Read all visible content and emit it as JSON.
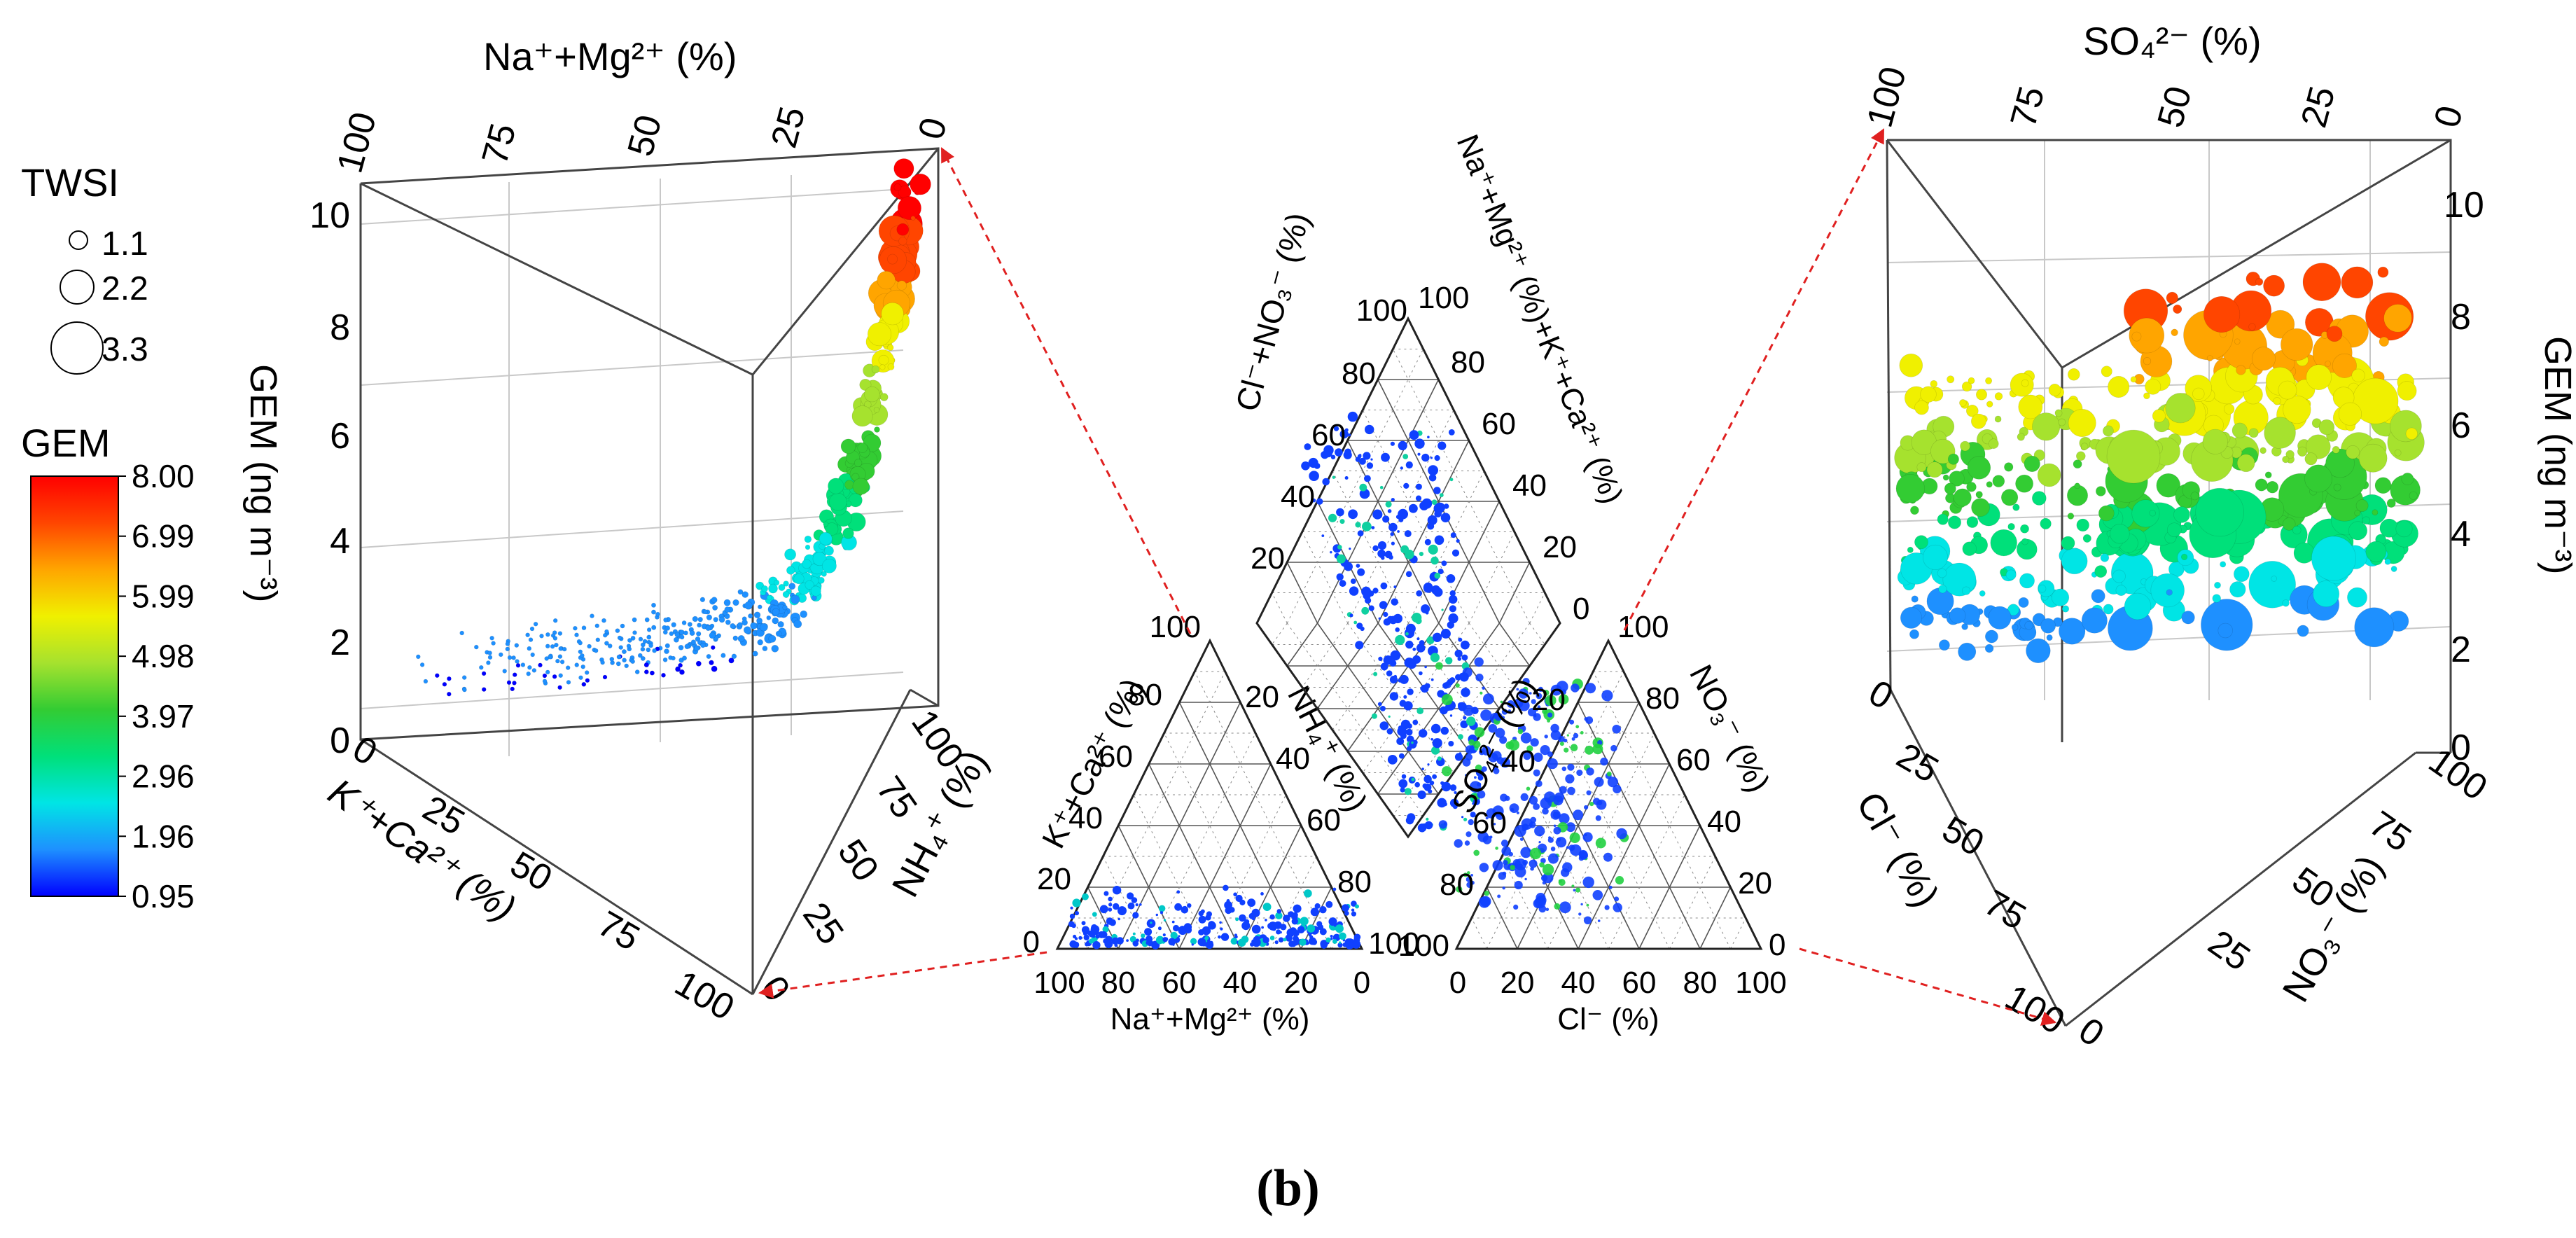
{
  "caption": "(b)",
  "colors": {
    "arrow": "#e02020",
    "axis": "#333333",
    "grid": "#bfbfbf",
    "gradient": [
      "#0000ff",
      "#1e90ff",
      "#00e5e5",
      "#00e07a",
      "#33cc33",
      "#a6e22e",
      "#f0f000",
      "#ffa500",
      "#ff4500",
      "#ff0000"
    ]
  },
  "legend": {
    "twsi_title": "TWSI",
    "twsi_sizes": [
      "1.1",
      "2.2",
      "3.3"
    ],
    "gem_title": "GEM",
    "gem_ticks": [
      "8.00",
      "6.99",
      "5.99",
      "4.98",
      "3.97",
      "2.96",
      "1.96",
      "0.95"
    ]
  },
  "chart_data": [
    {
      "type": "scatter",
      "id": "left-3d",
      "title": "",
      "top_axis_label": "Na⁺+Mg²⁺ (%)",
      "top_axis_ticks": [
        "100",
        "75",
        "50",
        "25",
        "0"
      ],
      "z_label": "GEM (ng m⁻³)",
      "z_ticks": [
        "0",
        "2",
        "4",
        "6",
        "8",
        "10"
      ],
      "zlim": [
        0,
        10
      ],
      "left_axis_label": "K⁺+Ca²⁺ (%)",
      "left_axis_ticks": [
        "0",
        "25",
        "50",
        "75",
        "100"
      ],
      "right_axis_label": "NH₄⁺ (%)",
      "right_axis_ticks": [
        "100",
        "75",
        "50",
        "25",
        "0"
      ],
      "size_variable": "TWSI",
      "color_variable": "GEM"
    },
    {
      "type": "scatter",
      "id": "cation-ternary",
      "bottom_label": "Na⁺+Mg²⁺ (%)",
      "left_label": "K⁺+Ca²⁺ (%)",
      "right_label": "NH₄⁺ (%)",
      "bottom_ticks": [
        "100",
        "80",
        "60",
        "40",
        "20",
        "0"
      ],
      "left_ticks": [
        "0",
        "20",
        "40",
        "60",
        "80",
        "100"
      ],
      "right_ticks": [
        "20",
        "40",
        "60",
        "80",
        "100"
      ]
    },
    {
      "type": "scatter",
      "id": "diamond",
      "left_label": "Cl⁻+NO₃⁻ (%)",
      "right_label": "Na⁺+Mg²⁺ (%)+K⁺+Ca²⁺ (%)",
      "left_ticks": [
        "20",
        "40",
        "60",
        "80",
        "100"
      ],
      "right_ticks": [
        "100",
        "80",
        "60",
        "40",
        "20",
        "0"
      ]
    },
    {
      "type": "scatter",
      "id": "anion-ternary",
      "bottom_label": "Cl⁻ (%)",
      "left_label": "SO₄²⁻ (%)",
      "right_label": "NO₃⁻ (%)",
      "bottom_ticks": [
        "0",
        "20",
        "40",
        "60",
        "80",
        "100"
      ],
      "left_ticks": [
        "100",
        "80",
        "60",
        "40",
        "20"
      ],
      "right_ticks": [
        "100",
        "80",
        "60",
        "40",
        "20",
        "0"
      ]
    },
    {
      "type": "scatter",
      "id": "right-3d",
      "top_axis_label": "SO₄²⁻ (%)",
      "top_axis_ticks": [
        "100",
        "75",
        "50",
        "25",
        "0"
      ],
      "z_label": "GEM (ng m⁻³)",
      "z_ticks": [
        "0",
        "2",
        "4",
        "6",
        "8",
        "10"
      ],
      "zlim": [
        0,
        10
      ],
      "left_axis_label": "Cl⁻ (%)",
      "left_axis_ticks": [
        "0",
        "25",
        "50",
        "75",
        "100"
      ],
      "right_axis_label": "NO₃⁻ (%)",
      "right_axis_ticks": [
        "100",
        "75",
        "50",
        "25",
        "0"
      ],
      "size_variable": "TWSI",
      "color_variable": "GEM"
    }
  ]
}
